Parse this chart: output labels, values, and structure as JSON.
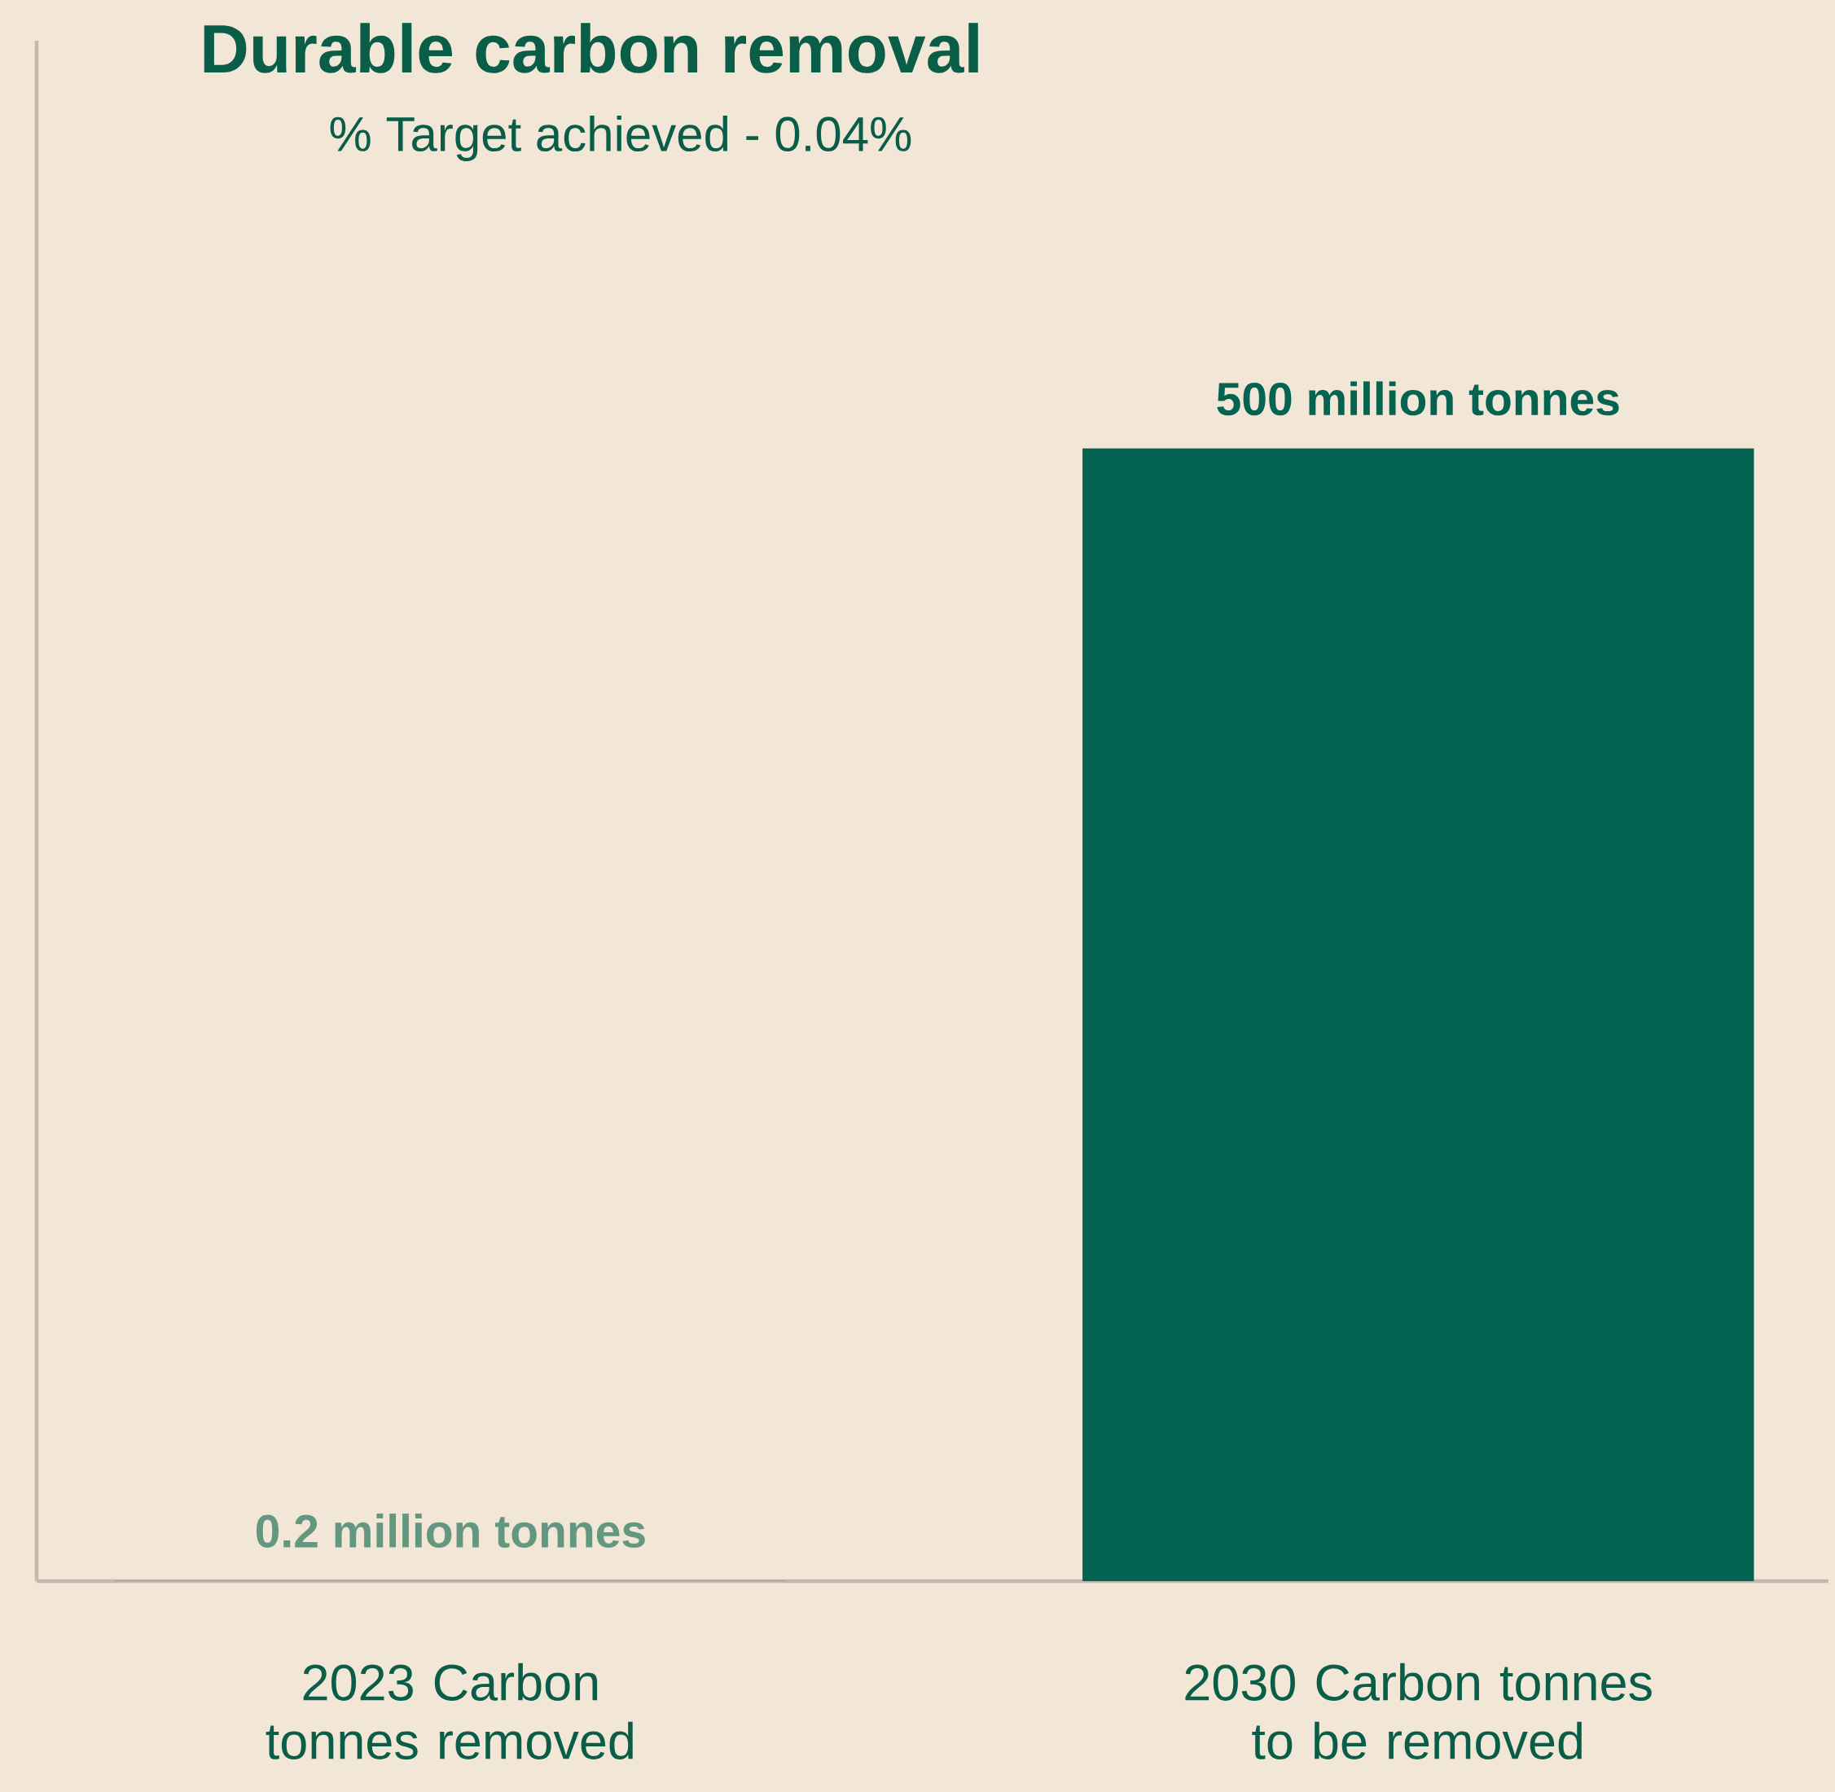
{
  "chart_data": {
    "type": "bar",
    "title": "Durable carbon removal",
    "subtitle": "% Target achieved -  0.04%",
    "categories": [
      "2023 Carbon tonnes removed",
      "2030 Carbon tonnes to be removed"
    ],
    "values": [
      0.2,
      500
    ],
    "colors": [
      "#63977f",
      "#046451"
    ],
    "value_labels": [
      "0.2 million tonnes",
      "500 million tonnes"
    ],
    "ylim": [
      0,
      680
    ],
    "tick_labels": "x"
  }
}
